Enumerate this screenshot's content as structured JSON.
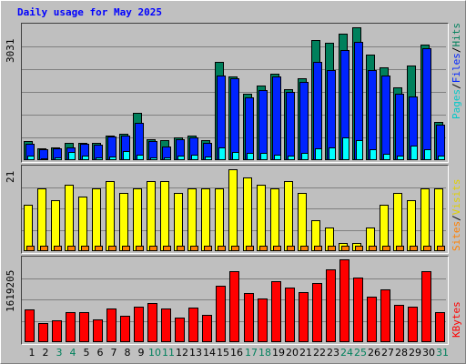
{
  "title": "Daily usage for May 2025",
  "colors": {
    "hits": "#00805c",
    "files": "#0024ff",
    "pages": "#00ffff",
    "visits": "#ffff00",
    "sites": "#ff8000",
    "kbytes": "#ff0000",
    "weekend_label": "#00805c",
    "weekday_label": "#000000"
  },
  "legends": {
    "top": {
      "pages": "Pages",
      "files": "Files",
      "hits": "Hits",
      "sep": "/"
    },
    "middle": {
      "sites": "Sites",
      "visits": "Visits",
      "sep": "/"
    },
    "bottom": {
      "kbytes": "KBytes"
    }
  },
  "chart_data": [
    {
      "type": "bar",
      "panel": "hits-files-pages",
      "categories": [
        "1",
        "2",
        "3",
        "4",
        "5",
        "6",
        "7",
        "8",
        "9",
        "10",
        "11",
        "12",
        "13",
        "14",
        "15",
        "16",
        "17",
        "18",
        "19",
        "20",
        "21",
        "22",
        "23",
        "24",
        "25",
        "26",
        "27",
        "28",
        "29",
        "30",
        "31"
      ],
      "weekend_days": [
        "3",
        "4",
        "10",
        "11",
        "17",
        "18",
        "24",
        "25",
        "31"
      ],
      "ymax_label": "3031",
      "ylim": [
        0,
        3031
      ],
      "series": [
        {
          "name": "Hits",
          "values": [
            440,
            260,
            300,
            400,
            400,
            390,
            570,
            600,
            1080,
            480,
            460,
            520,
            560,
            460,
            2240,
            1920,
            1520,
            1700,
            1980,
            1620,
            1860,
            2730,
            2680,
            2890,
            3031,
            2410,
            2110,
            1660,
            2150,
            2640,
            870
          ]
        },
        {
          "name": "Files",
          "values": [
            370,
            240,
            270,
            300,
            370,
            360,
            540,
            560,
            860,
            430,
            320,
            480,
            520,
            400,
            1940,
            1860,
            1440,
            1600,
            1900,
            1550,
            1780,
            2240,
            2050,
            2520,
            2690,
            2060,
            1940,
            1510,
            1460,
            2560,
            800
          ]
        },
        {
          "name": "Pages",
          "values": [
            110,
            50,
            60,
            190,
            100,
            70,
            80,
            200,
            130,
            70,
            60,
            110,
            120,
            90,
            300,
            180,
            170,
            170,
            120,
            110,
            170,
            260,
            290,
            520,
            460,
            250,
            150,
            110,
            330,
            240,
            100
          ]
        }
      ]
    },
    {
      "type": "bar",
      "panel": "visits-sites",
      "categories": [
        "1",
        "2",
        "3",
        "4",
        "5",
        "6",
        "7",
        "8",
        "9",
        "10",
        "11",
        "12",
        "13",
        "14",
        "15",
        "16",
        "17",
        "18",
        "19",
        "20",
        "21",
        "22",
        "23",
        "24",
        "25",
        "26",
        "27",
        "28",
        "29",
        "30",
        "31"
      ],
      "ymax_label": "21",
      "ylim": [
        0,
        21
      ],
      "series": [
        {
          "name": "Visits",
          "values": [
            12,
            16,
            13,
            17,
            14,
            16,
            18,
            15,
            16,
            18,
            18,
            15,
            16,
            16,
            16,
            21,
            19,
            17,
            16,
            18,
            15,
            8,
            6,
            2,
            2,
            6,
            12,
            15,
            13,
            16,
            16
          ]
        },
        {
          "name": "Sites",
          "values": [
            1,
            1,
            1,
            1,
            1,
            1,
            1,
            1,
            1,
            1,
            1,
            1,
            1,
            1,
            1,
            1,
            1,
            1,
            1,
            1,
            1,
            1,
            1,
            1,
            1,
            1,
            1,
            1,
            1,
            1,
            1
          ]
        }
      ]
    },
    {
      "type": "bar",
      "panel": "kbytes",
      "categories": [
        "1",
        "2",
        "3",
        "4",
        "5",
        "6",
        "7",
        "8",
        "9",
        "10",
        "11",
        "12",
        "13",
        "14",
        "15",
        "16",
        "17",
        "18",
        "19",
        "20",
        "21",
        "22",
        "23",
        "24",
        "25",
        "26",
        "27",
        "28",
        "29",
        "30",
        "31"
      ],
      "ymax_label": "1619205",
      "ylim": [
        0,
        1619205
      ],
      "series": [
        {
          "name": "KBytes",
          "values": [
            640000,
            370000,
            420000,
            590000,
            590000,
            440000,
            660000,
            510000,
            690000,
            760000,
            650000,
            480000,
            680000,
            530000,
            1110000,
            1380000,
            960000,
            850000,
            1190000,
            1060000,
            970000,
            1150000,
            1420000,
            1619205,
            1270000,
            890000,
            1040000,
            730000,
            690000,
            1380000,
            590000
          ]
        }
      ]
    }
  ]
}
